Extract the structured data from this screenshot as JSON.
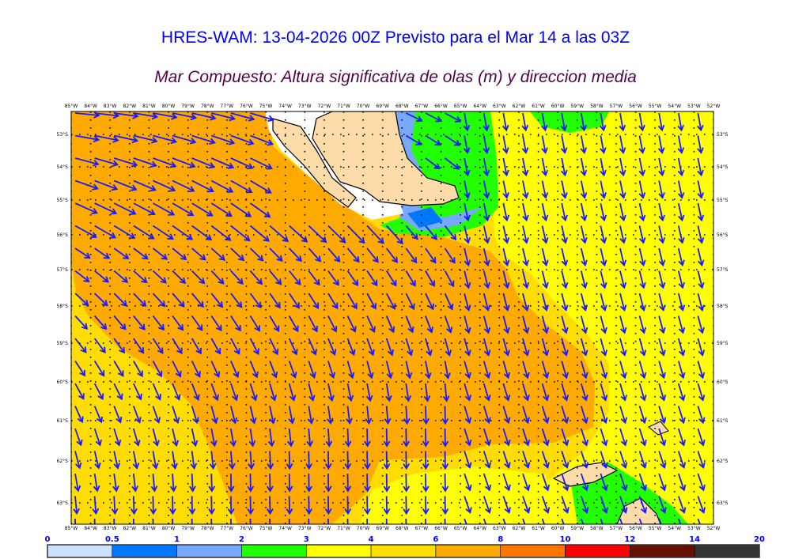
{
  "header": {
    "title": "HRES-WAM: 13-04-2026 00Z Previsto para el Mar 14 a las 03Z",
    "subtitle": "Mar Compuesto: Altura significativa de olas (m) y direccion media"
  },
  "map": {
    "longitudes": [
      "85°W",
      "84°W",
      "83°W",
      "82°W",
      "81°W",
      "80°W",
      "79°W",
      "78°W",
      "77°W",
      "76°W",
      "75°W",
      "74°W",
      "73°W",
      "72°W",
      "71°W",
      "70°W",
      "69°W",
      "68°W",
      "67°W",
      "66°W",
      "65°W",
      "64°W",
      "63°W",
      "62°W",
      "61°W",
      "60°W",
      "59°W",
      "58°W",
      "57°W",
      "56°W",
      "55°W",
      "54°W",
      "53°W",
      "52°W"
    ],
    "latitudes": [
      "53°S",
      "54°S",
      "55°S",
      "56°S",
      "57°S",
      "58°S",
      "59°S",
      "60°S",
      "61°S",
      "62°S",
      "63°S"
    ],
    "arrow_color": "#1a1aff",
    "land_color": "#fddcaa"
  },
  "colorbar": {
    "labels": [
      "0",
      "0.5",
      "1",
      "2",
      "3",
      "4",
      "6",
      "8",
      "10",
      "12",
      "14",
      "20"
    ],
    "colors": [
      "#cce0ff",
      "#0077ff",
      "#77aaff",
      "#22ff00",
      "#ffff00",
      "#ffdd00",
      "#ffaa00",
      "#ff7700",
      "#ff0000",
      "#661100",
      "#333333"
    ]
  }
}
